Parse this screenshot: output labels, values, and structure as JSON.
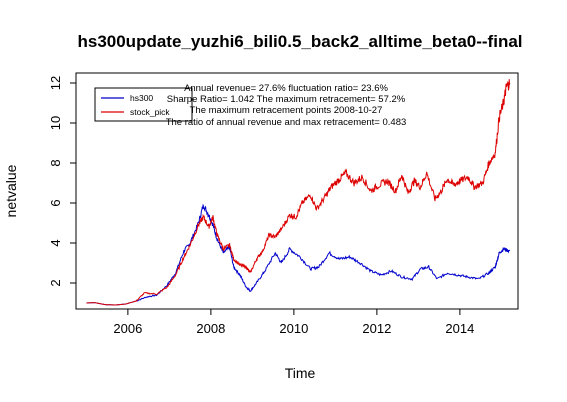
{
  "chart_data": {
    "type": "line",
    "title": "hs300update_yuzhi6_bili0.5_back2_alltime_beta0--final",
    "xlabel": "Time",
    "ylabel": "netvalue",
    "xlim": [
      2004.75,
      2015.4
    ],
    "ylim": [
      0.7,
      12.5
    ],
    "x_ticks": [
      2006,
      2008,
      2010,
      2012,
      2014
    ],
    "y_ticks": [
      2,
      4,
      6,
      8,
      10,
      12
    ],
    "grid": false,
    "legend_position": "top-left",
    "annotations": [
      "Annual revenue=  27.6% fluctuation ratio= 23.6%",
      "Sharpe Ratio= 1.042 The maximum retracement= 57.2%",
      "The maximum retracement points 2008-10-27",
      "The ratio of annual revenue and max retracement= 0.483"
    ],
    "series": [
      {
        "name": "hs300",
        "color": "#0000cc",
        "points": [
          [
            2005.0,
            1.0
          ],
          [
            2005.2,
            1.02
          ],
          [
            2005.45,
            0.92
          ],
          [
            2005.7,
            0.9
          ],
          [
            2005.95,
            0.95
          ],
          [
            2006.2,
            1.1
          ],
          [
            2006.45,
            1.3
          ],
          [
            2006.7,
            1.4
          ],
          [
            2006.95,
            1.9
          ],
          [
            2007.15,
            2.5
          ],
          [
            2007.35,
            3.6
          ],
          [
            2007.5,
            4.0
          ],
          [
            2007.7,
            5.0
          ],
          [
            2007.82,
            5.9
          ],
          [
            2007.95,
            5.4
          ],
          [
            2008.05,
            4.9
          ],
          [
            2008.15,
            4.2
          ],
          [
            2008.3,
            3.5
          ],
          [
            2008.45,
            3.8
          ],
          [
            2008.55,
            2.8
          ],
          [
            2008.7,
            2.4
          ],
          [
            2008.85,
            1.8
          ],
          [
            2008.95,
            1.6
          ],
          [
            2009.1,
            2.0
          ],
          [
            2009.3,
            2.6
          ],
          [
            2009.55,
            3.5
          ],
          [
            2009.7,
            3.0
          ],
          [
            2009.9,
            3.7
          ],
          [
            2010.15,
            3.3
          ],
          [
            2010.4,
            2.7
          ],
          [
            2010.6,
            2.8
          ],
          [
            2010.85,
            3.5
          ],
          [
            2011.1,
            3.2
          ],
          [
            2011.35,
            3.3
          ],
          [
            2011.6,
            3.0
          ],
          [
            2011.85,
            2.6
          ],
          [
            2012.1,
            2.4
          ],
          [
            2012.35,
            2.6
          ],
          [
            2012.6,
            2.3
          ],
          [
            2012.85,
            2.2
          ],
          [
            2013.05,
            2.7
          ],
          [
            2013.25,
            2.8
          ],
          [
            2013.45,
            2.2
          ],
          [
            2013.7,
            2.5
          ],
          [
            2013.95,
            2.4
          ],
          [
            2014.2,
            2.3
          ],
          [
            2014.45,
            2.2
          ],
          [
            2014.7,
            2.5
          ],
          [
            2014.85,
            2.8
          ],
          [
            2014.95,
            3.5
          ],
          [
            2015.05,
            3.7
          ],
          [
            2015.2,
            3.6
          ]
        ]
      },
      {
        "name": "stock_pick",
        "color": "#dd0000",
        "points": [
          [
            2005.0,
            1.0
          ],
          [
            2005.2,
            1.02
          ],
          [
            2005.45,
            0.92
          ],
          [
            2005.7,
            0.9
          ],
          [
            2005.95,
            0.95
          ],
          [
            2006.2,
            1.1
          ],
          [
            2006.4,
            1.5
          ],
          [
            2006.7,
            1.45
          ],
          [
            2006.95,
            1.8
          ],
          [
            2007.15,
            2.4
          ],
          [
            2007.35,
            3.3
          ],
          [
            2007.5,
            3.9
          ],
          [
            2007.7,
            4.9
          ],
          [
            2007.82,
            5.3
          ],
          [
            2007.95,
            4.8
          ],
          [
            2008.05,
            5.3
          ],
          [
            2008.15,
            4.4
          ],
          [
            2008.3,
            3.7
          ],
          [
            2008.45,
            3.9
          ],
          [
            2008.55,
            3.2
          ],
          [
            2008.7,
            2.9
          ],
          [
            2008.85,
            2.8
          ],
          [
            2008.95,
            2.5
          ],
          [
            2009.1,
            3.2
          ],
          [
            2009.25,
            3.6
          ],
          [
            2009.4,
            4.4
          ],
          [
            2009.55,
            4.3
          ],
          [
            2009.7,
            4.7
          ],
          [
            2009.9,
            5.4
          ],
          [
            2010.05,
            5.3
          ],
          [
            2010.2,
            6.0
          ],
          [
            2010.4,
            6.4
          ],
          [
            2010.55,
            5.7
          ],
          [
            2010.75,
            6.3
          ],
          [
            2010.9,
            6.8
          ],
          [
            2011.1,
            7.2
          ],
          [
            2011.25,
            7.5
          ],
          [
            2011.45,
            7.0
          ],
          [
            2011.65,
            7.3
          ],
          [
            2011.85,
            6.6
          ],
          [
            2012.05,
            6.9
          ],
          [
            2012.25,
            7.1
          ],
          [
            2012.45,
            6.6
          ],
          [
            2012.6,
            7.4
          ],
          [
            2012.75,
            6.5
          ],
          [
            2012.9,
            7.1
          ],
          [
            2013.05,
            6.8
          ],
          [
            2013.2,
            7.5
          ],
          [
            2013.4,
            6.2
          ],
          [
            2013.55,
            6.6
          ],
          [
            2013.7,
            7.2
          ],
          [
            2013.85,
            6.9
          ],
          [
            2014.0,
            7.1
          ],
          [
            2014.2,
            7.3
          ],
          [
            2014.35,
            6.8
          ],
          [
            2014.55,
            7.0
          ],
          [
            2014.7,
            8.0
          ],
          [
            2014.85,
            8.5
          ],
          [
            2014.95,
            10.3
          ],
          [
            2015.05,
            11.0
          ],
          [
            2015.12,
            11.8
          ],
          [
            2015.2,
            12.0
          ]
        ]
      }
    ]
  }
}
